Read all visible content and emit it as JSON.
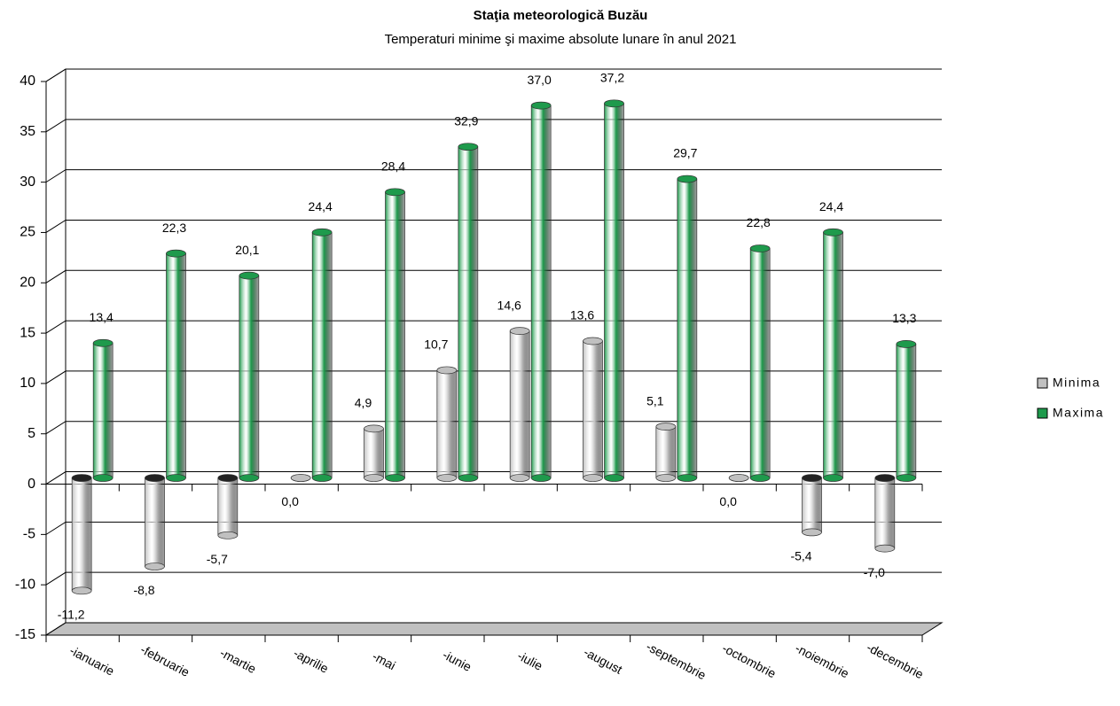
{
  "chart_data": {
    "type": "bar",
    "title": "Staţia meteorologică Buzău",
    "subtitle": "Temperaturi minime şi maxime absolute lunare în anul 2021",
    "categories": [
      "-ianuarie",
      "-februarie",
      "-martie",
      "-aprilie",
      "-mai",
      "-iunie",
      "-iulie",
      "-august",
      "-septembrie",
      "-octombrie",
      "-noiembrie",
      "-decembrie"
    ],
    "series": [
      {
        "name": "Minima",
        "color": "#c0c0c0",
        "values": [
          -11.2,
          -8.8,
          -5.7,
          0.0,
          4.9,
          10.7,
          14.6,
          13.6,
          5.1,
          0.0,
          -5.4,
          -7.0
        ],
        "value_labels": [
          "-11,2",
          "-8,8",
          "-5,7",
          "0,0",
          "4,9",
          "10,7",
          "14,6",
          "13,6",
          "5,1",
          "0,0",
          "-5,4",
          "-7,0"
        ]
      },
      {
        "name": "Maxima",
        "color": "#1e9a4c",
        "values": [
          13.4,
          22.3,
          20.1,
          24.4,
          28.4,
          32.9,
          37.0,
          37.2,
          29.7,
          22.8,
          24.4,
          13.3
        ],
        "value_labels": [
          "13,4",
          "22,3",
          "20,1",
          "24,4",
          "28,4",
          "32,9",
          "37,0",
          "37,2",
          "29,7",
          "22,8",
          "24,4",
          "13,3"
        ]
      }
    ],
    "ylim": [
      -15,
      40
    ],
    "yticks": [
      -15,
      -10,
      -5,
      0,
      5,
      10,
      15,
      20,
      25,
      30,
      35,
      40
    ],
    "grid": true,
    "legend": "right"
  }
}
